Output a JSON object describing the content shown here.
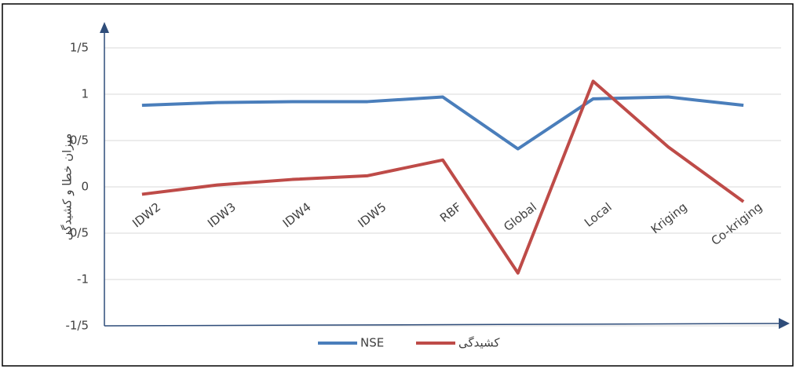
{
  "chart_data": {
    "type": "line",
    "y_label": "میزان خطا و کشیدگی",
    "categories": [
      "IDW2",
      "IDW3",
      "IDW4",
      "IDW5",
      "RBF",
      "Global",
      "Local",
      "Kriging",
      "Co-kriging"
    ],
    "series": [
      {
        "name": "NSE",
        "color": "#4a7ebb",
        "values": [
          0.88,
          0.91,
          0.92,
          0.92,
          0.97,
          0.41,
          0.95,
          0.97,
          0.88
        ]
      },
      {
        "name": "کشیدگی",
        "color": "#be4b48",
        "values": [
          -0.08,
          0.02,
          0.08,
          0.12,
          0.29,
          -0.93,
          1.14,
          0.43,
          -0.16
        ]
      }
    ],
    "ylim": [
      -1.5,
      1.5
    ],
    "yticks": [
      {
        "value": -1.5,
        "label": "-1/5"
      },
      -1,
      {
        "value": -0.5,
        "label": "-0/5"
      },
      0,
      {
        "value": 0.5,
        "label": "0/5"
      },
      1,
      {
        "value": 1.5,
        "label": "1/5"
      }
    ],
    "grid": true,
    "legend": "bottom"
  }
}
